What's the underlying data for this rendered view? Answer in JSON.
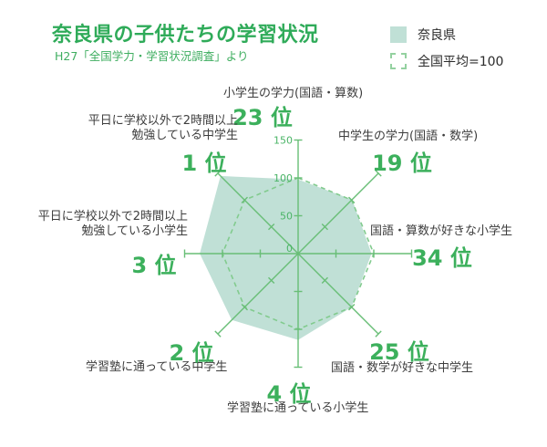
{
  "header": {
    "title": "奈良県の子供たちの学習状況",
    "subtitle": "H27「全国学力・学習状況調査」より"
  },
  "legend": {
    "series_nara": "奈良県",
    "series_national": "全国平均=100"
  },
  "colors": {
    "accent_green": "#2fab59",
    "rank_green": "#3cb05c",
    "fill": "#c0e0d6",
    "axis": "#68be76",
    "dashed": "#82cb8e",
    "scale_text": "#4ab466",
    "label_text": "#3d3d3d"
  },
  "chart_data": {
    "type": "radar",
    "title": "奈良県の子供たちの学習状況",
    "source": "H27「全国学力・学術状況調査」より",
    "max": 150,
    "ticks": [
      0,
      50,
      100,
      150
    ],
    "reference_value": 100,
    "reference_label": "全国平均=100",
    "series_name": "奈良県",
    "axes": [
      {
        "label": "小学生の学力(国語・算数)",
        "rank": "23 位",
        "value": 98
      },
      {
        "label": "中学生の学力(国語・数学)",
        "rank": "19 位",
        "value": 101
      },
      {
        "label": "国語・算数が好きな小学生",
        "rank": "34 位",
        "value": 97
      },
      {
        "label": "国語・数学が好きな中学生",
        "rank": "25 位",
        "value": 100
      },
      {
        "label": "学習塾に通っている小学生",
        "rank": "4 位",
        "value": 114
      },
      {
        "label": "学習塾に通っている中学生",
        "rank": "2 位",
        "value": 124
      },
      {
        "label": "平日に学校以外で2時間以上\n勉強している小学生",
        "rank": "3 位",
        "value": 130
      },
      {
        "label": "平日に学校以外で2時間以上\n勉強している中学生",
        "rank": "1 位",
        "value": 145
      }
    ]
  }
}
